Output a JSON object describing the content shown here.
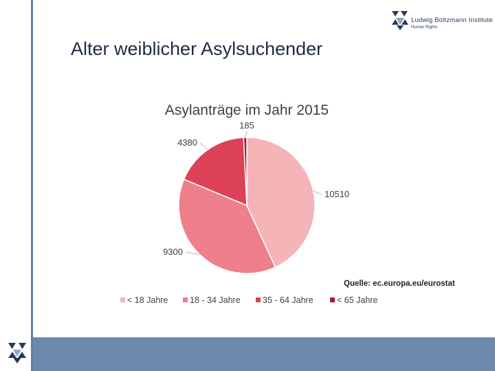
{
  "slide": {
    "title": "Alter weiblicher Asylsuchender"
  },
  "logo": {
    "name": "Ludwig Boltzmann Institute",
    "subtitle": "Human Rights",
    "icon": "lbi-triangle-logo-icon"
  },
  "colors": {
    "accent_bar": "#5f7fa8",
    "footer_band": "#6c88ad",
    "title_text": "#1f2a44"
  },
  "chart_data": {
    "type": "pie",
    "title": "Asylanträge im Jahr 2015",
    "source": "Quelle: ec.europa.eu/eurostat",
    "legend_placement": "bottom",
    "slices": [
      {
        "name": "< 18 Jahre",
        "value": 10510,
        "label": "10510",
        "color": "#f4b4b8"
      },
      {
        "name": "18 - 34 Jahre",
        "value": 9300,
        "label": "9300",
        "color": "#ef7f8a"
      },
      {
        "name": "35 - 64 Jahre",
        "value": 4380,
        "label": "4380",
        "color": "#dc4157"
      },
      {
        "name": "< 65 Jahre",
        "value": 185,
        "label": "185",
        "color": "#a81b33"
      }
    ]
  }
}
